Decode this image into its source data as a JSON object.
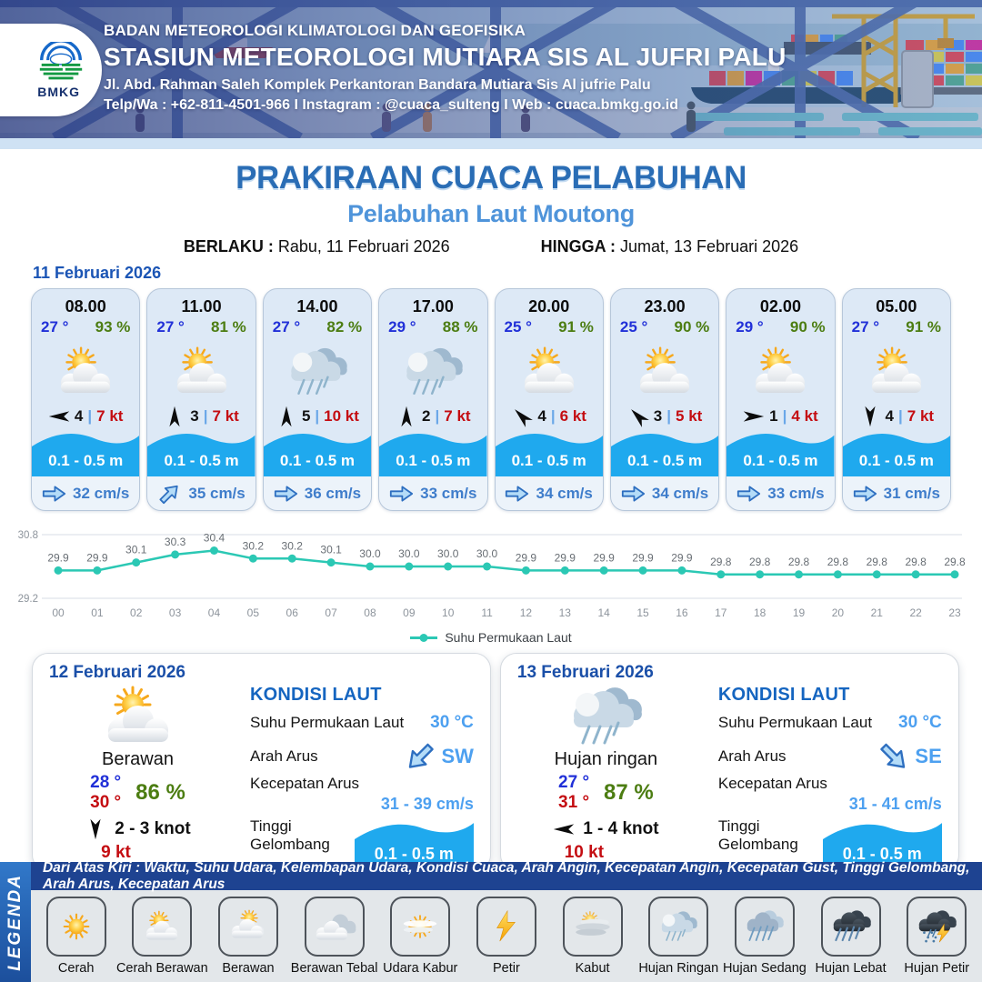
{
  "header": {
    "logo_text": "BMKG",
    "agency_line": "BADAN METEOROLOGI KLIMATOLOGI DAN GEOFISIKA",
    "station_line": "STASIUN METEOROLOGI MUTIARA SIS AL JUFRI PALU",
    "address_line": "Jl. Abd. Rahman Saleh Komplek Perkantoran Bandara Mutiara Sis Al jufrie Palu",
    "contact_line": "Telp/Wa : +62-811-4501-966  I  Instagram : @cuaca_sulteng  I  Web : cuaca.bmkg.go.id"
  },
  "title": {
    "main": "PRAKIRAAN CUACA PELABUHAN",
    "subtitle": "Pelabuhan Laut Moutong"
  },
  "validity": {
    "berlaku_label": "BERLAKU :",
    "berlaku_value": "Rabu, 11 Februari 2026",
    "hingga_label": "HINGGA :",
    "hingga_value": "Jumat, 13 Februari 2026"
  },
  "forecast": {
    "date": "11 Februari 2026",
    "separator": "|",
    "cards": [
      {
        "time": "08.00",
        "temp": "27 °",
        "humidity": "93 %",
        "weather": "cerah-berawan",
        "wind_dir": "W",
        "wind_force": "4",
        "wind_speed": "7 kt",
        "wave_height": "0.1 - 0.5 m",
        "current_dir": "E",
        "current_speed": "32 cm/s"
      },
      {
        "time": "11.00",
        "temp": "27 °",
        "humidity": "81 %",
        "weather": "cerah-berawan",
        "wind_dir": "N",
        "wind_force": "3",
        "wind_speed": "7 kt",
        "wave_height": "0.1 - 0.5 m",
        "current_dir": "NE",
        "current_speed": "35 cm/s"
      },
      {
        "time": "14.00",
        "temp": "27 °",
        "humidity": "82 %",
        "weather": "hujan-ringan",
        "wind_dir": "N",
        "wind_force": "5",
        "wind_speed": "10 kt",
        "wave_height": "0.1 - 0.5 m",
        "current_dir": "E",
        "current_speed": "36 cm/s"
      },
      {
        "time": "17.00",
        "temp": "29 °",
        "humidity": "88 %",
        "weather": "hujan-ringan",
        "wind_dir": "N",
        "wind_force": "2",
        "wind_speed": "7 kt",
        "wave_height": "0.1 - 0.5 m",
        "current_dir": "E",
        "current_speed": "33 cm/s"
      },
      {
        "time": "20.00",
        "temp": "25 °",
        "humidity": "91 %",
        "weather": "cerah-berawan",
        "wind_dir": "NW",
        "wind_force": "4",
        "wind_speed": "6 kt",
        "wave_height": "0.1 - 0.5 m",
        "current_dir": "E",
        "current_speed": "34 cm/s"
      },
      {
        "time": "23.00",
        "temp": "25 °",
        "humidity": "90 %",
        "weather": "cerah-berawan",
        "wind_dir": "NW",
        "wind_force": "3",
        "wind_speed": "5 kt",
        "wave_height": "0.1 - 0.5 m",
        "current_dir": "E",
        "current_speed": "34 cm/s"
      },
      {
        "time": "02.00",
        "temp": "29 °",
        "humidity": "90 %",
        "weather": "cerah-berawan",
        "wind_dir": "E",
        "wind_force": "1",
        "wind_speed": "4 kt",
        "wave_height": "0.1 - 0.5 m",
        "current_dir": "E",
        "current_speed": "33 cm/s"
      },
      {
        "time": "05.00",
        "temp": "27 °",
        "humidity": "91 %",
        "weather": "cerah-berawan",
        "wind_dir": "S",
        "wind_force": "4",
        "wind_speed": "7 kt",
        "wave_height": "0.1 - 0.5 m",
        "current_dir": "E",
        "current_speed": "31 cm/s"
      }
    ]
  },
  "chart_data": {
    "type": "line",
    "title": "",
    "legend": "Suhu Permukaan Laut",
    "legend_position": "bottom",
    "x": [
      "00",
      "01",
      "02",
      "03",
      "04",
      "05",
      "06",
      "07",
      "08",
      "09",
      "10",
      "11",
      "12",
      "13",
      "14",
      "15",
      "16",
      "17",
      "18",
      "19",
      "20",
      "21",
      "22",
      "23"
    ],
    "values": [
      29.9,
      29.9,
      30.1,
      30.3,
      30.4,
      30.2,
      30.2,
      30.1,
      30.0,
      30.0,
      30.0,
      30.0,
      29.9,
      29.9,
      29.9,
      29.9,
      29.9,
      29.8,
      29.8,
      29.8,
      29.8,
      29.8,
      29.8,
      29.8
    ],
    "labels": [
      "29.9",
      "29.9",
      "30.1",
      "30.3",
      "30.4",
      "30.2",
      "30.2",
      "30.1",
      "30.0",
      "30.0",
      "30.0",
      "30.0",
      "29.9",
      "29.9",
      "29.9",
      "29.9",
      "29.9",
      "29.8",
      "29.8",
      "29.8",
      "29.8",
      "29.8",
      "29.8",
      "29.8"
    ],
    "ylim": [
      29.2,
      30.8
    ],
    "ytick_labels": [
      "30.8",
      "29.2"
    ],
    "grid": true,
    "line_color": "#2bc8b4"
  },
  "days": [
    {
      "date": "12 Februari 2026",
      "condition": "Berawan",
      "weather": "cerah-berawan",
      "temp_min": "28 °",
      "temp_max": "30 °",
      "humidity": "86 %",
      "wind_dir": "S",
      "wind_range": "2  - 3 knot",
      "gust": "9 kt",
      "sea": {
        "heading": "KONDISI LAUT",
        "sst_label": "Suhu Permukaan Laut",
        "sst_value": "30 °C",
        "current_dir_label": "Arah Arus",
        "current_dir": "SW",
        "current_speed_label": "Kecepatan Arus",
        "current_speed": "31  - 39 cm/s",
        "wave_label": "Tinggi Gelombang",
        "wave_height": "0.1 - 0.5 m"
      }
    },
    {
      "date": "13 Februari 2026",
      "condition": "Hujan ringan",
      "weather": "hujan-ringan",
      "temp_min": "27 °",
      "temp_max": "31 °",
      "humidity": "87 %",
      "wind_dir": "W",
      "wind_range": "1  - 4 knot",
      "gust": "10 kt",
      "sea": {
        "heading": "KONDISI LAUT",
        "sst_label": "Suhu Permukaan Laut",
        "sst_value": "30 °C",
        "current_dir_label": "Arah Arus",
        "current_dir": "SE",
        "current_speed_label": "Kecepatan Arus",
        "current_speed": "31 - 41 cm/s",
        "wave_label": "Tinggi Gelombang",
        "wave_height": "0.1 - 0.5 m"
      }
    }
  ],
  "legend": {
    "side_label": "LEGENDA",
    "header": "Dari Atas Kiri : Waktu, Suhu Udara, Kelembapan Udara, Kondisi Cuaca, Arah Angin, Kecepatan Angin, Kecepatan Gust, Tinggi Gelombang, Arah Arus, Kecepatan Arus",
    "items": [
      {
        "label": "Cerah",
        "icon": "cerah"
      },
      {
        "label": "Cerah Berawan",
        "icon": "cerah-berawan"
      },
      {
        "label": "Berawan",
        "icon": "berawan"
      },
      {
        "label": "Berawan Tebal",
        "icon": "berawan-tebal"
      },
      {
        "label": "Udara Kabur",
        "icon": "udara-kabur"
      },
      {
        "label": "Petir",
        "icon": "petir"
      },
      {
        "label": "Kabut",
        "icon": "kabut"
      },
      {
        "label": "Hujan Ringan",
        "icon": "hujan-ringan"
      },
      {
        "label": "Hujan Sedang",
        "icon": "hujan-sedang"
      },
      {
        "label": "Hujan Lebat",
        "icon": "hujan-lebat"
      },
      {
        "label": "Hujan Petir",
        "icon": "hujan-petir"
      }
    ]
  },
  "colors": {
    "title_blue": "#2a6db5",
    "subtitle_blue": "#4f94da",
    "date_blue": "#1b55b5",
    "temp_blue": "#2130d8",
    "humidity_green": "#4c7d12",
    "speed_red": "#c40d12",
    "wave_blue": "#1fa9ee",
    "current_blue": "#3f7dcb",
    "sea_value_blue": "#4da0f0",
    "chart_teal": "#2bc8b4",
    "legend_bar_navy": "#1e4391",
    "legend_side_blue": "#2f6fc0"
  }
}
